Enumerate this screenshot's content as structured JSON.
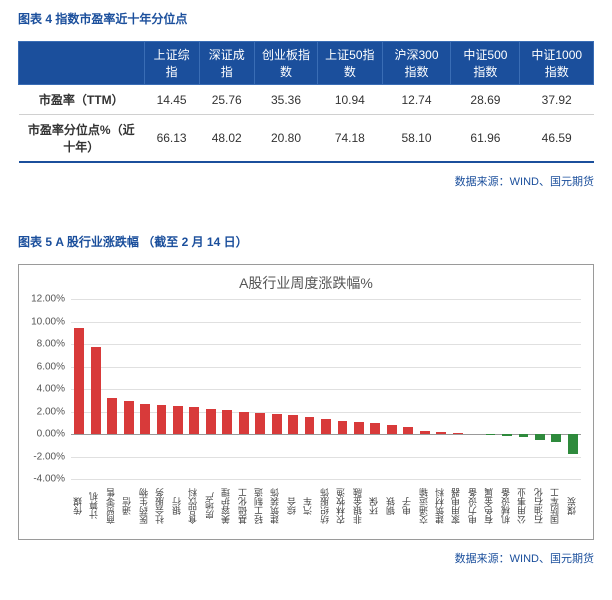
{
  "table": {
    "title": "图表 4 指数市盈率近十年分位点",
    "columns": [
      "",
      "上证综指",
      "深证成指",
      "创业板指数",
      "上证50指数",
      "沪深300指数",
      "中证500指数",
      "中证1000指数"
    ],
    "rows": [
      {
        "label": "市盈率（TTM）",
        "cells": [
          "14.45",
          "25.76",
          "35.36",
          "10.94",
          "12.74",
          "28.69",
          "37.92"
        ]
      },
      {
        "label": "市盈率分位点%（近十年）",
        "cells": [
          "66.13",
          "48.02",
          "20.80",
          "74.18",
          "58.10",
          "61.96",
          "46.59"
        ]
      }
    ],
    "source": "数据来源：WIND、国元期货"
  },
  "chart": {
    "caption": "图表 5 A 股行业涨跌幅 （截至 2 月 14 日）",
    "title": "A股行业周度涨跌幅%",
    "source": "数据来源：WIND、国元期货",
    "ylim": [
      -4,
      12
    ],
    "yticks": [
      -4,
      -2,
      0,
      2,
      4,
      6,
      8,
      10,
      12
    ],
    "ytick_labels": [
      "-4.00%",
      "-2.00%",
      "0.00%",
      "2.00%",
      "4.00%",
      "6.00%",
      "8.00%",
      "10.00%",
      "12.00%"
    ],
    "grid_color": "#e0e0e0",
    "pos_color": "#d83a3a",
    "neg_color": "#2e8a3c",
    "categories": [
      "传媒",
      "计算机",
      "商贸零售",
      "通信",
      "医药生物",
      "社会服务",
      "银行",
      "食品饮料",
      "房地产",
      "美容护理",
      "基础化工",
      "轻工制造",
      "建筑装饰",
      "综合",
      "汽车",
      "纺织服饰",
      "农林牧渔",
      "非银金融",
      "环保",
      "钢铁",
      "电子",
      "交通运输",
      "建筑材料",
      "家用电器",
      "电力设备",
      "有色金属",
      "机械设备",
      "公用事业",
      "石油石化",
      "国防军工",
      "煤炭"
    ],
    "values": [
      9.4,
      7.7,
      3.2,
      2.9,
      2.7,
      2.6,
      2.5,
      2.4,
      2.2,
      2.1,
      2.0,
      1.9,
      1.8,
      1.7,
      1.5,
      1.3,
      1.2,
      1.1,
      1.0,
      0.8,
      0.6,
      0.3,
      0.2,
      0.1,
      0.0,
      -0.1,
      -0.2,
      -0.3,
      -0.5,
      -0.7,
      -1.8
    ]
  }
}
